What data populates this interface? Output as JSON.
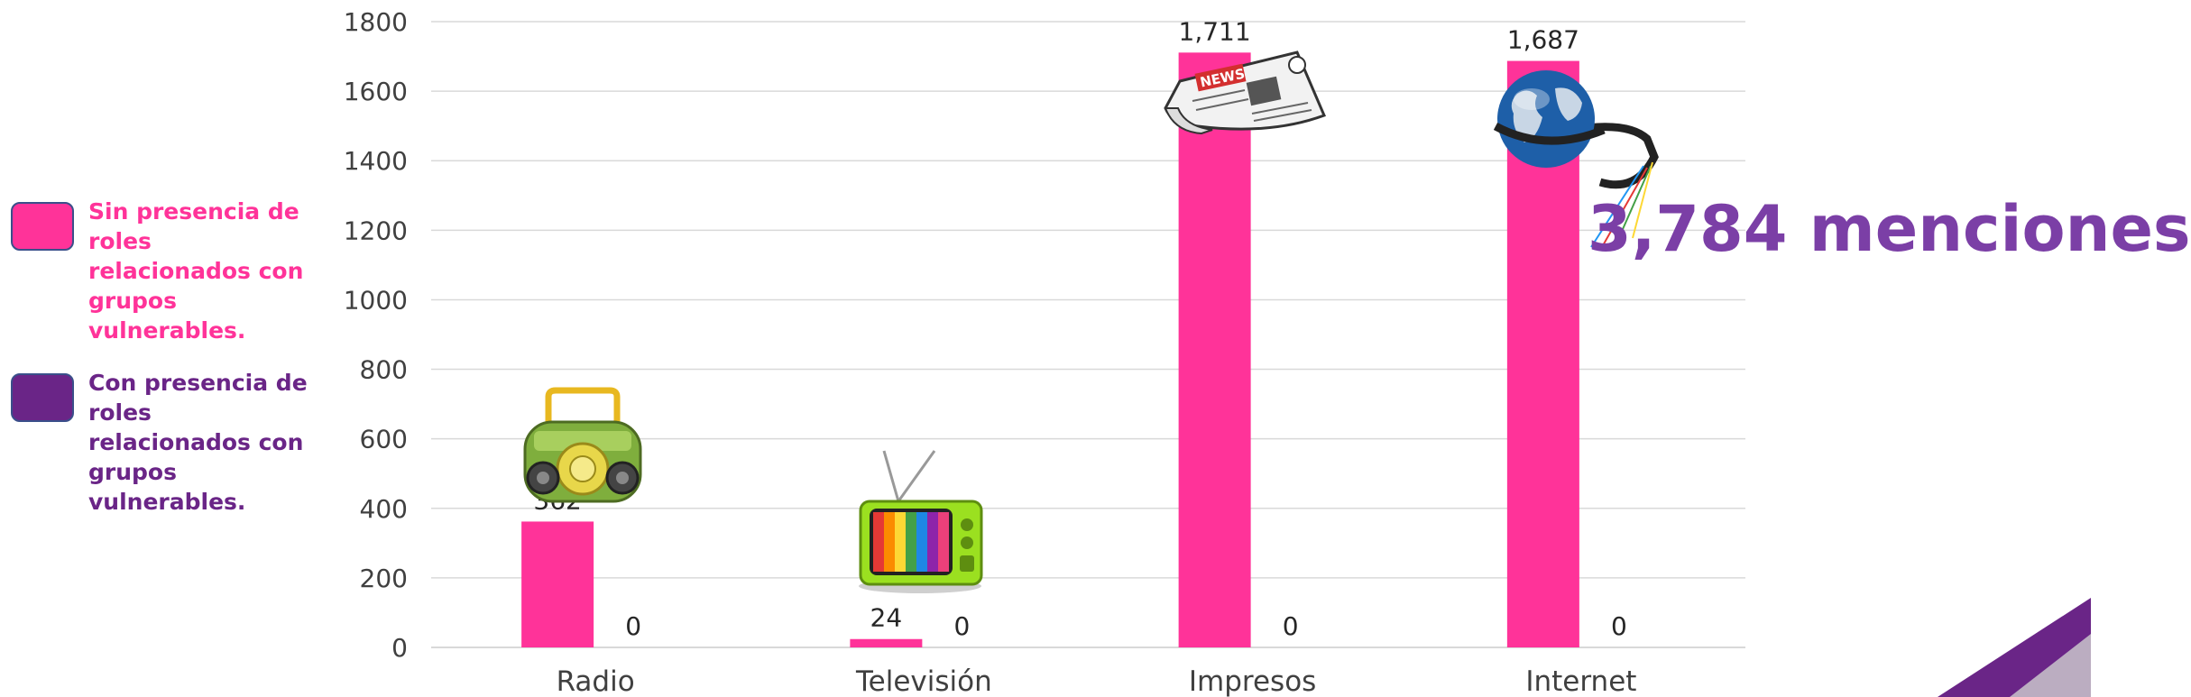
{
  "chart_data": {
    "type": "bar",
    "categories": [
      "Radio",
      "Televisión",
      "Impresos",
      "Internet"
    ],
    "series": [
      {
        "name": "Sin presencia de roles relacionados con grupos vulnerables.",
        "values": [
          362,
          24,
          1711,
          1687
        ],
        "labels": [
          "362",
          "24",
          "1,711",
          "1,687"
        ],
        "color": "#ff3399"
      },
      {
        "name": "Con presencia de roles relacionados con grupos vulnerables.",
        "values": [
          0,
          0,
          0,
          0
        ],
        "labels": [
          "0",
          "0",
          "0",
          "0"
        ],
        "color": "#6a2587"
      }
    ],
    "ylim": [
      0,
      1800
    ],
    "yticks": [
      0,
      200,
      400,
      600,
      800,
      1000,
      1200,
      1400,
      1600,
      1800
    ],
    "grid": true,
    "legend_position": "left",
    "title": "",
    "xlabel": "",
    "ylabel": ""
  },
  "legend": {
    "items": [
      {
        "label": "Sin presencia de roles relacionados con grupos vulnerables.",
        "color": "#ff3399"
      },
      {
        "label": "Con presencia de roles relacionados con grupos vulnerables.",
        "color": "#6a2587"
      }
    ]
  },
  "callout": {
    "text": "3,784 menciones",
    "color": "#7b3fa6"
  },
  "icons": [
    "radio-icon",
    "television-icon",
    "newspaper-icon",
    "globe-icon"
  ],
  "colors": {
    "grid": "#d9d9d9",
    "axis_text": "#404040",
    "label_text": "#262626",
    "corner": "#6a2587"
  }
}
